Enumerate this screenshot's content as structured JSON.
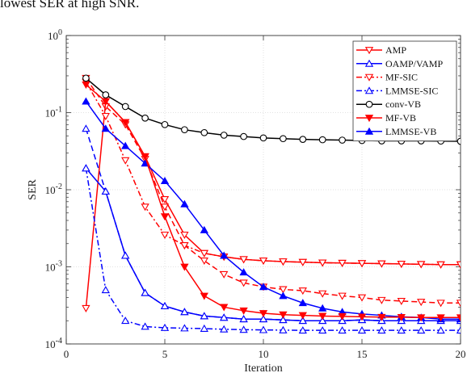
{
  "caption": "lowest SER at high SNR.",
  "chart_data": {
    "type": "line",
    "xlabel": "Iteration",
    "ylabel": "SER",
    "xlim": [
      0,
      20
    ],
    "ylim": [
      0.0001,
      1
    ],
    "yscale": "log",
    "x_ticks": [
      "0",
      "5",
      "10",
      "15",
      "20"
    ],
    "y_ticks": [
      {
        "base": "10",
        "exp": "0"
      },
      {
        "base": "10",
        "exp": "-1"
      },
      {
        "base": "10",
        "exp": "-2"
      },
      {
        "base": "10",
        "exp": "-3"
      },
      {
        "base": "10",
        "exp": "-4"
      }
    ],
    "grid": "dotted",
    "legend_position": "top-right",
    "x": [
      1,
      2,
      3,
      4,
      5,
      6,
      7,
      8,
      9,
      10,
      11,
      12,
      13,
      14,
      15,
      16,
      17,
      18,
      19,
      20
    ],
    "series": [
      {
        "name": "AMP",
        "color": "#ff0000",
        "dash": "solid",
        "marker": "triangle-down-open",
        "values": [
          0.00029,
          0.14,
          0.075,
          0.027,
          0.0075,
          0.0026,
          0.0015,
          0.00135,
          0.00125,
          0.0012,
          0.00117,
          0.00115,
          0.00113,
          0.00112,
          0.00111,
          0.0011,
          0.00109,
          0.00108,
          0.00107,
          0.00107
        ]
      },
      {
        "name": "OAMP/VAMP",
        "color": "#0000ff",
        "dash": "solid",
        "marker": "triangle-up-open",
        "values": [
          0.019,
          0.0095,
          0.0014,
          0.00046,
          0.00031,
          0.00026,
          0.00023,
          0.00022,
          0.00021,
          0.00021,
          0.000205,
          0.0002,
          0.0002,
          0.0002,
          0.000205,
          0.0002,
          0.0002,
          0.0002,
          0.0002,
          0.0002
        ]
      },
      {
        "name": "MF-SIC",
        "color": "#ff0000",
        "dash": "dashdot",
        "marker": "triangle-down-open",
        "values": [
          0.25,
          0.09,
          0.024,
          0.006,
          0.0026,
          0.0019,
          0.0015,
          0.00135,
          0.00125,
          0.0012,
          0.00117,
          0.00115,
          0.00113,
          0.00112,
          0.00111,
          0.0011,
          0.00109,
          0.00108,
          0.00107,
          0.00107
        ]
      },
      {
        "name": "LMMSE-SIC",
        "color": "#0000ff",
        "dash": "dashdot",
        "marker": "triangle-up-open",
        "values": [
          0.019,
          0.0005,
          0.0002,
          0.000168,
          0.000162,
          0.00016,
          0.000158,
          0.000155,
          0.000153,
          0.000152,
          0.000151,
          0.00015,
          0.00015,
          0.00015,
          0.00015,
          0.00015,
          0.00015,
          0.00015,
          0.00015,
          0.00015
        ]
      },
      {
        "name": "conv-VB",
        "color": "#000000",
        "dash": "solid",
        "marker": "circle-open",
        "values": [
          0.28,
          0.17,
          0.12,
          0.085,
          0.07,
          0.06,
          0.055,
          0.051,
          0.049,
          0.047,
          0.046,
          0.045,
          0.0445,
          0.044,
          0.0435,
          0.043,
          0.043,
          0.043,
          0.0428,
          0.0425
        ]
      },
      {
        "name": "MF-VB",
        "color": "#ff0000",
        "dash": "solid",
        "marker": "triangle-down-filled",
        "values": [
          0.23,
          0.14,
          0.075,
          0.027,
          0.0045,
          0.001,
          0.00042,
          0.0003,
          0.00027,
          0.00025,
          0.00024,
          0.000235,
          0.00023,
          0.000228,
          0.000225,
          0.000223,
          0.000222,
          0.00022,
          0.00022,
          0.00022
        ]
      },
      {
        "name": "LMMSE-VB",
        "color": "#0000ff",
        "dash": "solid",
        "marker": "triangle-up-filled",
        "values": [
          0.14,
          0.062,
          0.037,
          0.022,
          0.013,
          0.0065,
          0.003,
          0.0014,
          0.00085,
          0.00055,
          0.00042,
          0.00034,
          0.00029,
          0.00026,
          0.000245,
          0.000235,
          0.000225,
          0.00022,
          0.00021,
          0.00021
        ]
      },
      {
        "name": "",
        "color": "#ff0000",
        "dash": "dashed",
        "marker": "triangle-down-open",
        "values": [
          0.28,
          0.12,
          0.07,
          0.025,
          0.006,
          0.0019,
          0.0012,
          0.0008,
          0.00062,
          0.00055,
          0.00051,
          0.00049,
          0.00045,
          0.00042,
          0.0004,
          0.00037,
          0.00036,
          0.00035,
          0.00034,
          0.00034
        ]
      },
      {
        "name": "",
        "color": "#0000ff",
        "dash": "dashed",
        "marker": "triangle-up-open",
        "values": [
          0.062,
          0.0095,
          0.0014,
          0.00046,
          0.00031,
          0.00026,
          0.00023,
          0.00022,
          0.00021,
          0.00021,
          0.000205,
          0.0002,
          0.0002,
          0.0002,
          0.000205,
          0.0002,
          0.0002,
          0.0002,
          0.0002,
          0.0002
        ]
      }
    ]
  }
}
